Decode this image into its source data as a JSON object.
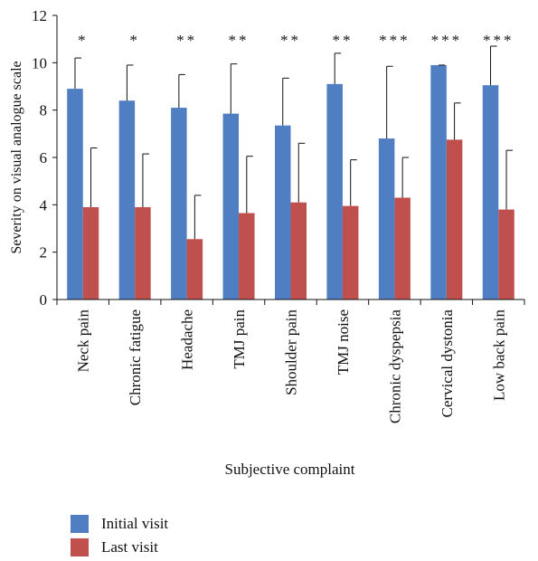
{
  "chart_data": {
    "type": "bar",
    "title": "",
    "xlabel": "Subjective complaint",
    "ylabel": "Severity on visual analogue scale",
    "ylim": [
      0,
      12
    ],
    "yticks": [
      0,
      2,
      4,
      6,
      8,
      10,
      12
    ],
    "categories": [
      "Neck pain",
      "Chronic fatigue",
      "Headache",
      "TMJ pain",
      "Shoulder pain",
      "TMJ noise",
      "Chronic dyspepsia",
      "Cervical dystonia",
      "Low back pain"
    ],
    "significance": [
      "*",
      "*",
      "**",
      "**",
      "**",
      "**",
      "***",
      "***",
      "***"
    ],
    "series": [
      {
        "name": "Initial visit",
        "color": "#4f7ec3",
        "values": [
          8.9,
          8.4,
          8.1,
          7.85,
          7.35,
          9.1,
          6.8,
          9.9,
          9.05
        ],
        "error": [
          1.3,
          1.5,
          1.4,
          2.1,
          2.0,
          1.3,
          3.05,
          0.0,
          1.65
        ]
      },
      {
        "name": "Last visit",
        "color": "#c0504d",
        "values": [
          3.9,
          3.9,
          2.55,
          3.65,
          4.1,
          3.95,
          4.3,
          6.75,
          3.8
        ],
        "error": [
          2.5,
          2.25,
          1.85,
          2.4,
          2.5,
          1.95,
          1.7,
          1.55,
          2.5
        ]
      }
    ],
    "grid": false,
    "legend_position": "bottom-left"
  }
}
